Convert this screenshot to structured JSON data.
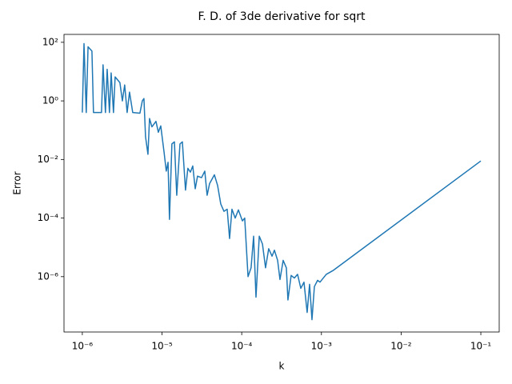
{
  "chart_data": {
    "type": "line",
    "title": "F. D. of 3de derivative for sqrt",
    "xlabel": "k",
    "ylabel": "Error",
    "xscale": "log",
    "yscale": "log",
    "color": "#1f77b4",
    "x": [
      1e-06,
      1.05e-06,
      1.12e-06,
      1.18e-06,
      1.32e-06,
      1.38e-06,
      1.74e-06,
      1.82e-06,
      1.95e-06,
      2.05e-06,
      2.19e-06,
      2.3e-06,
      2.46e-06,
      2.58e-06,
      2.96e-06,
      3.18e-06,
      3.4e-06,
      3.65e-06,
      3.91e-06,
      4.29e-06,
      5.28e-06,
      5.66e-06,
      5.93e-06,
      6.21e-06,
      6.66e-06,
      6.97e-06,
      7.47e-06,
      8.39e-06,
      8.99e-06,
      9.64e-06,
      1.06e-05,
      1.13e-05,
      1.19e-05,
      1.24e-05,
      1.33e-05,
      1.43e-05,
      1.53e-05,
      1.68e-05,
      1.8e-05,
      1.97e-05,
      2.11e-05,
      2.27e-05,
      2.43e-05,
      2.61e-05,
      2.79e-05,
      3.13e-05,
      3.44e-05,
      3.68e-05,
      3.95e-05,
      4.54e-05,
      4.98e-05,
      5.46e-05,
      5.99e-05,
      6.57e-05,
      7.04e-05,
      7.54e-05,
      8.28e-05,
      9.08e-05,
      0.000102,
      0.000109,
      0.00012,
      0.000131,
      0.000141,
      0.000151,
      0.000166,
      0.000182,
      0.000199,
      0.000218,
      0.00024,
      0.000257,
      0.000282,
      0.000302,
      0.000331,
      0.000363,
      0.00038,
      0.000417,
      0.000458,
      0.000502,
      0.000551,
      0.000604,
      0.000662,
      0.00071,
      0.000761,
      0.000816,
      0.000895,
      0.000959,
      0.00115,
      0.00139,
      0.1
    ],
    "values": [
      0.4,
      90,
      0.4,
      70,
      50,
      0.4,
      0.4,
      17,
      0.4,
      12,
      0.4,
      9,
      0.4,
      6.6,
      4.2,
      1,
      3.5,
      0.4,
      2,
      0.4,
      0.38,
      1,
      1.2,
      0.06,
      0.015,
      0.25,
      0.13,
      0.2,
      0.085,
      0.14,
      0.018,
      0.004,
      0.008,
      9e-05,
      0.034,
      0.04,
      0.0006,
      0.034,
      0.04,
      0.0009,
      0.005,
      0.0037,
      0.006,
      0.001,
      0.0027,
      0.0024,
      0.004,
      0.0006,
      0.0015,
      0.003,
      0.0013,
      0.0003,
      0.00017,
      0.0002,
      2e-05,
      0.0002,
      0.0001,
      0.00019,
      8e-05,
      0.0001,
      1e-06,
      2e-06,
      2.4e-05,
      2e-07,
      2.4e-05,
      1.3e-05,
      2e-06,
      9e-06,
      5e-06,
      8e-06,
      3.6e-06,
      8e-07,
      3.6e-06,
      2e-06,
      1.6e-07,
      1.1e-06,
      9e-07,
      1.2e-06,
      4e-07,
      6.5e-07,
      6e-08,
      5.5e-07,
      3.4e-08,
      4.6e-07,
      7.5e-07,
      6.5e-07,
      1.2e-06,
      1.6e-06,
      0.0089
    ],
    "xlim": [
      5.89e-07,
      0.17
    ],
    "ylim": [
      1.29e-08,
      186
    ],
    "xticks": [
      {
        "value": 1e-06,
        "label": "10⁻⁶"
      },
      {
        "value": 1e-05,
        "label": "10⁻⁵"
      },
      {
        "value": 0.0001,
        "label": "10⁻⁴"
      },
      {
        "value": 0.001,
        "label": "10⁻³"
      },
      {
        "value": 0.01,
        "label": "10⁻²"
      },
      {
        "value": 0.1,
        "label": "10⁻¹"
      }
    ],
    "yticks": [
      {
        "value": 1e-06,
        "label": "10⁻⁶"
      },
      {
        "value": 0.0001,
        "label": "10⁻⁴"
      },
      {
        "value": 0.01,
        "label": "10⁻²"
      },
      {
        "value": 1,
        "label": "10⁰"
      },
      {
        "value": 100,
        "label": "10²"
      }
    ]
  }
}
